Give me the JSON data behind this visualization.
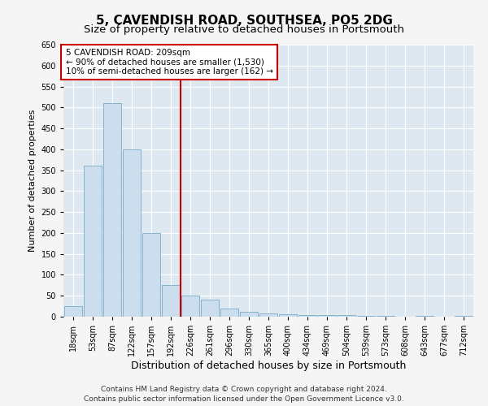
{
  "title": "5, CAVENDISH ROAD, SOUTHSEA, PO5 2DG",
  "subtitle": "Size of property relative to detached houses in Portsmouth",
  "xlabel": "Distribution of detached houses by size in Portsmouth",
  "ylabel": "Number of detached properties",
  "bar_color": "#ccdded",
  "bar_edge_color": "#7aaac8",
  "bar_heights": [
    25,
    360,
    510,
    400,
    200,
    75,
    50,
    40,
    20,
    12,
    8,
    5,
    4,
    4,
    3,
    1,
    2,
    0,
    2,
    0,
    2
  ],
  "bin_labels": [
    "18sqm",
    "53sqm",
    "87sqm",
    "122sqm",
    "157sqm",
    "192sqm",
    "226sqm",
    "261sqm",
    "296sqm",
    "330sqm",
    "365sqm",
    "400sqm",
    "434sqm",
    "469sqm",
    "504sqm",
    "539sqm",
    "573sqm",
    "608sqm",
    "643sqm",
    "677sqm",
    "712sqm"
  ],
  "ylim": [
    0,
    650
  ],
  "yticks": [
    0,
    50,
    100,
    150,
    200,
    250,
    300,
    350,
    400,
    450,
    500,
    550,
    600,
    650
  ],
  "vline_x": 5.5,
  "vline_color": "#cc0000",
  "annotation_text": "5 CAVENDISH ROAD: 209sqm\n← 90% of detached houses are smaller (1,530)\n10% of semi-detached houses are larger (162) →",
  "annotation_box_color": "#ffffff",
  "annotation_box_edge": "#cc0000",
  "background_color": "#dde8f0",
  "grid_color": "#ffffff",
  "fig_facecolor": "#f5f5f5",
  "footer1": "Contains HM Land Registry data © Crown copyright and database right 2024.",
  "footer2": "Contains public sector information licensed under the Open Government Licence v3.0.",
  "title_fontsize": 11,
  "subtitle_fontsize": 9.5,
  "xlabel_fontsize": 9,
  "ylabel_fontsize": 8,
  "tick_fontsize": 7,
  "annot_fontsize": 7.5,
  "footer_fontsize": 6.5
}
